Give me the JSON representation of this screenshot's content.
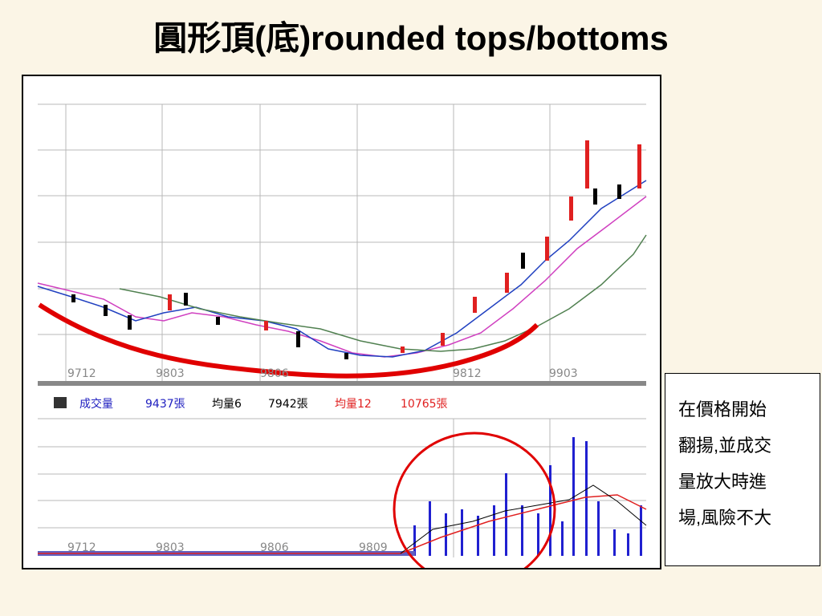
{
  "slide": {
    "title": "圓形頂(底)rounded tops/bottoms",
    "chart": {
      "price_x_labels": [
        "9712",
        "9803",
        "9806",
        "9812",
        "9903"
      ],
      "volume_legend": [
        {
          "name": "成交量",
          "value": "9437張"
        },
        {
          "name": "均量6",
          "value": "7942張"
        },
        {
          "name": "均量12",
          "value": "10765張"
        }
      ],
      "volume_x_labels": [
        "9712",
        "9803",
        "9806",
        "9809"
      ]
    },
    "note_lines": [
      "在價格開始",
      "翻揚,並成交",
      "量放大時進",
      "場,風險不大"
    ]
  }
}
